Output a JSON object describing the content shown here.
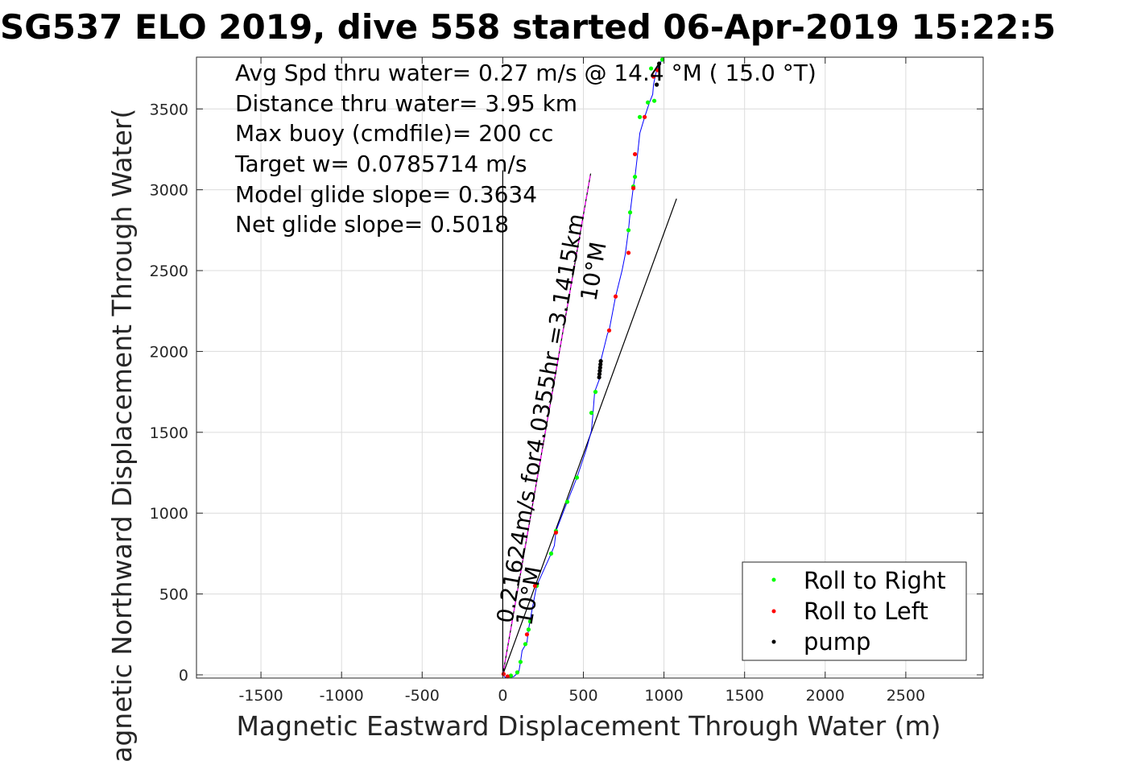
{
  "chart_data": {
    "type": "line",
    "title": "SG537 ELO 2019, dive 558 started 06-Apr-2019 15:22:5",
    "xlabel": "Magnetic Eastward Displacement Through Water (m)",
    "ylabel": "Magnetic Northward Displacement Through Water(",
    "xlim": [
      -1900,
      2980
    ],
    "ylim": [
      -20,
      3820
    ],
    "xticks": [
      -1500,
      -1000,
      -500,
      0,
      500,
      1000,
      1500,
      2000,
      2500
    ],
    "yticks": [
      0,
      500,
      1000,
      1500,
      2000,
      2500,
      3000,
      3500
    ],
    "grid": true,
    "legend_position": "bottom-right",
    "annotations": [
      "Avg Spd thru water=  0.27 m/s @  14.4 °M ( 15.0 °T)",
      "Distance thru water=  3.95 km",
      "Max buoy (cmdfile)= 200 cc",
      "Target w= 0.0785714 m/s",
      "Model glide slope= 0.3634",
      "Net glide slope= 0.5018"
    ],
    "rotated_labels": {
      "heading_line_label": "0.21624m/s for4.0355hr =3.1415km",
      "heading_line_deg": "10°M",
      "heading_origin_deg": "10°M"
    },
    "lines": {
      "north_reference": [
        [
          0,
          0
        ],
        [
          0,
          3120
        ]
      ],
      "heading_line": [
        [
          0,
          0
        ],
        [
          545,
          3100
        ]
      ],
      "heading_line_dashed": [
        [
          0,
          0
        ],
        [
          545,
          3100
        ]
      ],
      "net_track_line": [
        [
          0,
          0
        ],
        [
          1078,
          2945
        ]
      ],
      "track": [
        [
          0,
          0
        ],
        [
          15,
          -15
        ],
        [
          40,
          -20
        ],
        [
          70,
          -10
        ],
        [
          100,
          20
        ],
        [
          110,
          80
        ],
        [
          120,
          150
        ],
        [
          150,
          200
        ],
        [
          160,
          280
        ],
        [
          170,
          340
        ],
        [
          210,
          550
        ],
        [
          300,
          750
        ],
        [
          320,
          800
        ],
        [
          330,
          890
        ],
        [
          400,
          1070
        ],
        [
          460,
          1220
        ],
        [
          520,
          1400
        ],
        [
          550,
          1510
        ],
        [
          560,
          1620
        ],
        [
          570,
          1750
        ],
        [
          600,
          1830
        ],
        [
          610,
          1950
        ],
        [
          650,
          2110
        ],
        [
          660,
          2130
        ],
        [
          700,
          2340
        ],
        [
          740,
          2500
        ],
        [
          760,
          2600
        ],
        [
          780,
          2750
        ],
        [
          790,
          2860
        ],
        [
          810,
          3020
        ],
        [
          820,
          3080
        ],
        [
          835,
          3210
        ],
        [
          850,
          3350
        ],
        [
          880,
          3450
        ],
        [
          910,
          3540
        ],
        [
          930,
          3590
        ],
        [
          935,
          3650
        ],
        [
          945,
          3700
        ],
        [
          955,
          3740
        ],
        [
          965,
          3760
        ],
        [
          985,
          3800
        ]
      ]
    },
    "series": [
      {
        "name": "Roll to Right",
        "color": "#00ff00",
        "points": [
          [
            50,
            -5
          ],
          [
            90,
            15
          ],
          [
            110,
            80
          ],
          [
            140,
            190
          ],
          [
            160,
            280
          ],
          [
            170,
            330
          ],
          [
            210,
            550
          ],
          [
            300,
            750
          ],
          [
            330,
            890
          ],
          [
            400,
            1070
          ],
          [
            460,
            1220
          ],
          [
            550,
            1620
          ],
          [
            575,
            1750
          ],
          [
            780,
            2750
          ],
          [
            790,
            2860
          ],
          [
            810,
            3020
          ],
          [
            820,
            3080
          ],
          [
            850,
            3450
          ],
          [
            900,
            3540
          ],
          [
            940,
            3550
          ],
          [
            920,
            3750
          ],
          [
            990,
            3805
          ]
        ]
      },
      {
        "name": "Roll to Left",
        "color": "#ff0000",
        "points": [
          [
            5,
            5
          ],
          [
            30,
            -10
          ],
          [
            150,
            250
          ],
          [
            200,
            550
          ],
          [
            330,
            880
          ],
          [
            660,
            2130
          ],
          [
            700,
            2340
          ],
          [
            780,
            2610
          ],
          [
            810,
            3010
          ],
          [
            820,
            3220
          ],
          [
            880,
            3450
          ],
          [
            935,
            3700
          ],
          [
            960,
            3740
          ]
        ]
      },
      {
        "name": "pump",
        "color": "#000000",
        "points": [
          [
            598,
            1840
          ],
          [
            600,
            1860
          ],
          [
            602,
            1880
          ],
          [
            604,
            1900
          ],
          [
            606,
            1920
          ],
          [
            608,
            1940
          ],
          [
            955,
            3650
          ],
          [
            970,
            3780
          ]
        ]
      }
    ],
    "colors": {
      "track": "#0000ff",
      "heading_dashed": "#ff00ff",
      "reference": "#000000",
      "grid": "#dcdcdc"
    }
  }
}
